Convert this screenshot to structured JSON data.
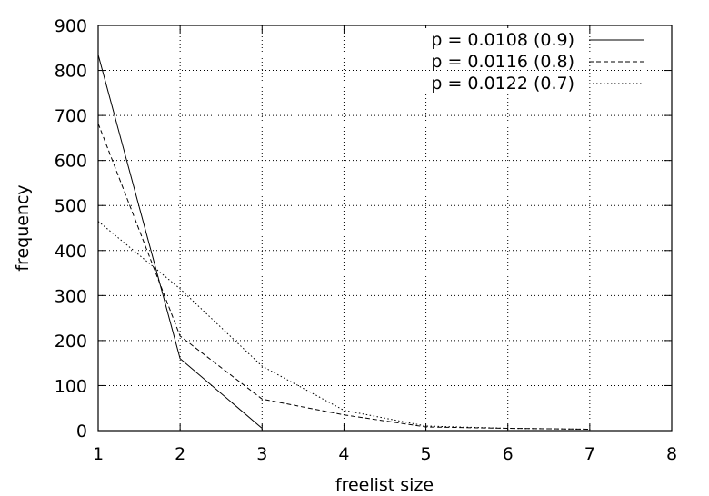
{
  "chart_data": {
    "type": "line",
    "title": "",
    "xlabel": "freelist size",
    "ylabel": "frequency",
    "xlim": [
      1,
      8
    ],
    "ylim": [
      0,
      900
    ],
    "xticks": [
      1,
      2,
      3,
      4,
      5,
      6,
      7,
      8
    ],
    "yticks": [
      0,
      100,
      200,
      300,
      400,
      500,
      600,
      700,
      800,
      900
    ],
    "grid": true,
    "legend": "top-right",
    "series": [
      {
        "name": "p = 0.0108 (0.9)",
        "style": "solid",
        "x": [
          1,
          2,
          3
        ],
        "y": [
          835,
          160,
          5
        ]
      },
      {
        "name": "p = 0.0116 (0.8)",
        "style": "dashed",
        "x": [
          1,
          2,
          3,
          4,
          5,
          6,
          7
        ],
        "y": [
          682,
          210,
          70,
          35,
          8,
          5,
          3
        ]
      },
      {
        "name": "p = 0.0122 (0.7)",
        "style": "dotted",
        "x": [
          1,
          2,
          3,
          4,
          5,
          6,
          7
        ],
        "y": [
          465,
          315,
          143,
          45,
          10,
          5,
          3
        ]
      }
    ]
  }
}
